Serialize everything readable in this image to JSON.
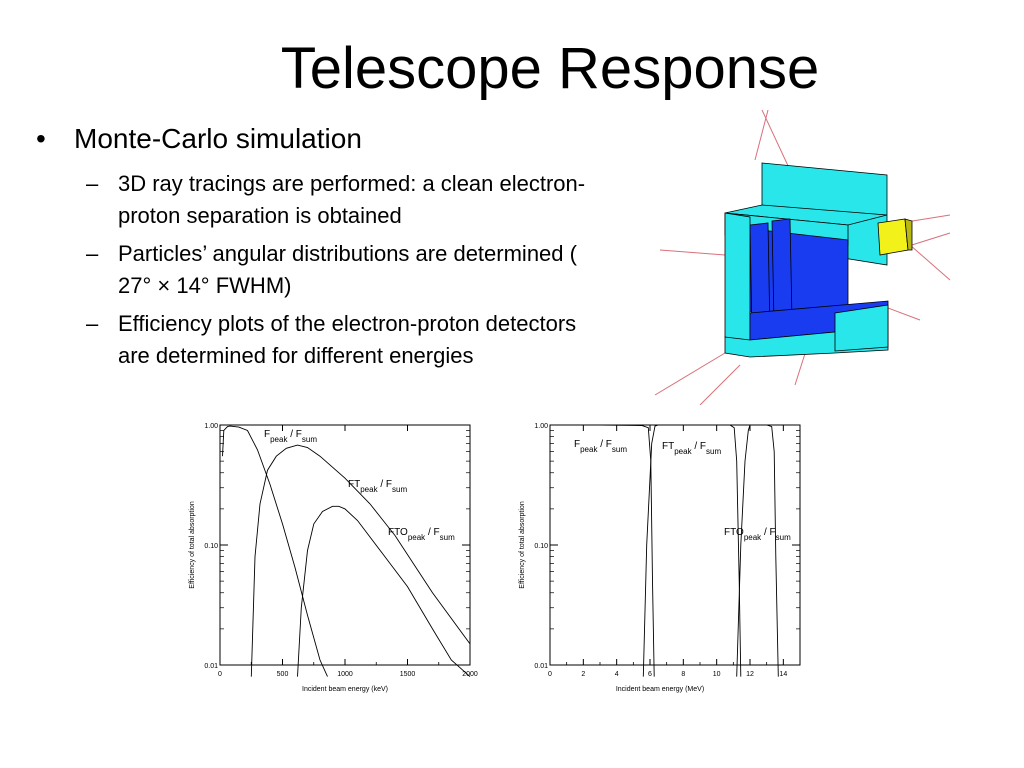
{
  "slide": {
    "title": "Telescope Response",
    "bullet_marker": "•",
    "bullet": "Monte-Carlo simulation",
    "sub_marker": "–",
    "subbullets": [
      "3D ray tracings are performed: a clean electron-proton separation is obtained",
      "Particles’ angular distributions are determined ( 27°  × 14°  FWHM)",
      "Efficiency plots of the electron-proton detectors are determined for different energies"
    ]
  },
  "colors": {
    "detector_cyan": "#29e6ea",
    "detector_blue": "#1a3cf0",
    "detector_yellow": "#f2f21a",
    "ray_red": "#d9707a",
    "plot_line": "#000000"
  },
  "chart_data": [
    {
      "type": "line",
      "title": "",
      "xlabel": "Incident beam energy (keV)",
      "ylabel": "Efficiency of total absorption",
      "xscale": "linear",
      "yscale": "log",
      "xlim": [
        0,
        2000
      ],
      "ylim": [
        0.01,
        1.0
      ],
      "xticks": [
        "0",
        "500",
        "1000",
        "1500",
        "2000"
      ],
      "yticks": [
        "1.00",
        "0.10",
        "0.01"
      ],
      "labels": [
        {
          "main": "F",
          "sub1": "peak",
          "sep": " / F",
          "sub2": "sum"
        },
        {
          "main": "FT",
          "sub1": "peak",
          "sep": " / F",
          "sub2": "sum"
        },
        {
          "main": "FTO",
          "sub1": "peak",
          "sep": " / F",
          "sub2": "sum"
        }
      ],
      "series": [
        {
          "x": [
            20,
            30,
            60,
            80,
            150,
            220,
            300,
            400,
            500,
            600,
            700,
            800,
            860
          ],
          "y": [
            0.55,
            0.9,
            0.97,
            0.98,
            0.96,
            0.9,
            0.62,
            0.32,
            0.15,
            0.065,
            0.026,
            0.011,
            0.008
          ]
        },
        {
          "x": [
            250,
            280,
            320,
            380,
            450,
            530,
            620,
            700,
            800,
            1000,
            1200,
            1400,
            1700,
            2000
          ],
          "y": [
            0.008,
            0.08,
            0.22,
            0.42,
            0.55,
            0.64,
            0.68,
            0.65,
            0.55,
            0.36,
            0.22,
            0.12,
            0.04,
            0.015
          ]
        },
        {
          "x": [
            620,
            650,
            700,
            750,
            820,
            900,
            950,
            1000,
            1100,
            1300,
            1500,
            1700,
            1850,
            2000
          ],
          "y": [
            0.008,
            0.03,
            0.09,
            0.15,
            0.19,
            0.21,
            0.21,
            0.2,
            0.16,
            0.085,
            0.045,
            0.02,
            0.011,
            0.008
          ]
        }
      ]
    },
    {
      "type": "line",
      "title": "",
      "xlabel": "Incident beam energy (MeV)",
      "ylabel": "Efficiency of total absorption",
      "xscale": "linear",
      "yscale": "log",
      "xlim": [
        0,
        15
      ],
      "ylim": [
        0.01,
        1.0
      ],
      "xticks": [
        "0",
        "2",
        "4",
        "6",
        "8",
        "10",
        "12",
        "14"
      ],
      "yticks": [
        "1.00",
        "0.10",
        "0.01"
      ],
      "labels": [
        {
          "main": "F",
          "sub1": "peak",
          "sep": " / F",
          "sub2": "sum"
        },
        {
          "main": "FT",
          "sub1": "peak",
          "sep": " / F",
          "sub2": "sum"
        },
        {
          "main": "FTO",
          "sub1": "peak",
          "sep": " / F",
          "sub2": "sum"
        }
      ],
      "series": [
        {
          "x": [
            0.1,
            3,
            5.5,
            5.9,
            6.05,
            6.15,
            6.25
          ],
          "y": [
            1.0,
            1.0,
            0.99,
            0.95,
            0.5,
            0.05,
            0.008
          ]
        },
        {
          "x": [
            5.6,
            5.8,
            6.1,
            6.3,
            6.5,
            7,
            9,
            10.8,
            11.05,
            11.2,
            11.35,
            11.45
          ],
          "y": [
            0.008,
            0.1,
            0.7,
            0.98,
            1.0,
            1.0,
            1.0,
            1.0,
            0.95,
            0.5,
            0.05,
            0.008
          ]
        },
        {
          "x": [
            11.2,
            11.45,
            11.7,
            11.9,
            12.0,
            12.2,
            13.0,
            13.3,
            13.45,
            13.55,
            13.7
          ],
          "y": [
            0.008,
            0.1,
            0.5,
            0.9,
            1.0,
            1.0,
            1.0,
            0.97,
            0.6,
            0.08,
            0.008
          ]
        }
      ]
    }
  ]
}
